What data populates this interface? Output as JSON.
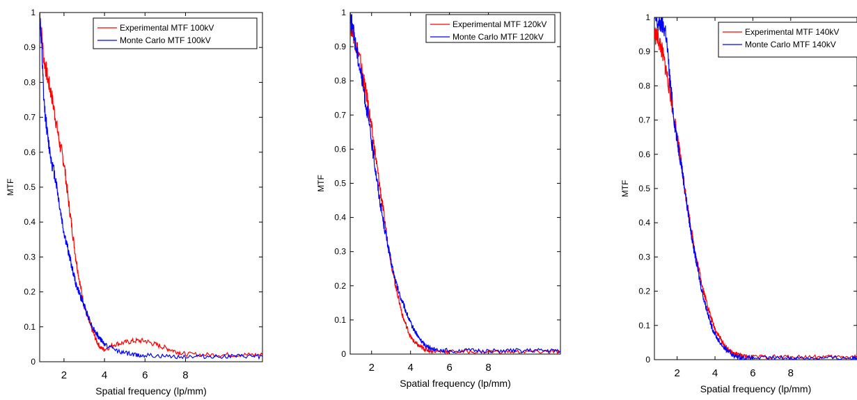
{
  "chart_data": [
    {
      "type": "line",
      "xlabel": "Spatial frequency (lp/mm)",
      "ylabel": "MTF",
      "xlim": [
        0.8,
        11.8
      ],
      "ylim": [
        0,
        1
      ],
      "x_ticks": [
        2,
        4,
        6,
        8
      ],
      "y_ticks": [
        0,
        0.1,
        0.2,
        0.3,
        0.4,
        0.5,
        0.6,
        0.7,
        0.8,
        0.9,
        1
      ],
      "y_tick_labels": [
        "0",
        "0.1",
        "0.2",
        "0.3",
        "0.4",
        "0.5",
        "0.6",
        "0.7",
        "0.8",
        "0.9",
        "1"
      ],
      "legend_position": "top-right",
      "grid": false,
      "series": [
        {
          "name": "Experimental MTF  100kV",
          "color": "#ff0000",
          "x": [
            0.8,
            1.0,
            1.2,
            1.4,
            1.6,
            1.8,
            2.0,
            2.2,
            2.4,
            2.6,
            2.8,
            3.0,
            3.2,
            3.4,
            3.6,
            3.8,
            4.0,
            4.5,
            5.0,
            5.5,
            6.0,
            6.5,
            7.0,
            7.5,
            8.0,
            9.0,
            10.0,
            11.0,
            11.8
          ],
          "y": [
            1.0,
            0.87,
            0.81,
            0.76,
            0.69,
            0.62,
            0.57,
            0.47,
            0.38,
            0.29,
            0.22,
            0.16,
            0.12,
            0.09,
            0.06,
            0.04,
            0.035,
            0.05,
            0.055,
            0.06,
            0.06,
            0.05,
            0.04,
            0.03,
            0.022,
            0.02,
            0.02,
            0.02,
            0.02
          ]
        },
        {
          "name": "Monte Carlo MTF  100kV",
          "color": "#0000ff",
          "x": [
            0.8,
            0.9,
            1.0,
            1.2,
            1.4,
            1.6,
            1.8,
            2.0,
            2.2,
            2.4,
            2.6,
            2.8,
            3.0,
            3.2,
            3.4,
            3.6,
            3.8,
            4.0,
            4.5,
            5.0,
            5.5,
            6.0,
            7.0,
            8.0,
            9.0,
            10.0,
            11.0,
            11.8
          ],
          "y": [
            1.0,
            0.9,
            0.75,
            0.64,
            0.57,
            0.52,
            0.44,
            0.37,
            0.32,
            0.27,
            0.22,
            0.19,
            0.16,
            0.13,
            0.1,
            0.08,
            0.065,
            0.05,
            0.035,
            0.025,
            0.02,
            0.018,
            0.015,
            0.015,
            0.015,
            0.015,
            0.015,
            0.015
          ]
        }
      ]
    },
    {
      "type": "line",
      "xlabel": "Spatial frequency (lp/mm)",
      "ylabel": "MTF",
      "xlim": [
        0.9,
        11.7
      ],
      "ylim": [
        0,
        1
      ],
      "x_ticks": [
        2,
        4,
        6,
        8
      ],
      "y_ticks": [
        0,
        0.1,
        0.2,
        0.3,
        0.4,
        0.5,
        0.6,
        0.7,
        0.8,
        0.9,
        1
      ],
      "y_tick_labels": [
        "0",
        "0.1",
        "0.2",
        "0.3",
        "0.4",
        "0.5",
        "0.6",
        "0.7",
        "0.8",
        "0.9",
        "1"
      ],
      "legend_position": "top-right",
      "grid": false,
      "series": [
        {
          "name": "Experimental MTF  120kV",
          "color": "#ff0000",
          "x": [
            0.9,
            1.0,
            1.2,
            1.4,
            1.6,
            1.8,
            2.0,
            2.2,
            2.4,
            2.6,
            2.8,
            3.0,
            3.2,
            3.4,
            3.6,
            3.8,
            4.0,
            4.2,
            4.4,
            4.6,
            4.8,
            5.0,
            5.5,
            6.0,
            7.0,
            8.0,
            9.0,
            10.0,
            11.0,
            11.7
          ],
          "y": [
            0.97,
            0.95,
            0.91,
            0.86,
            0.8,
            0.74,
            0.66,
            0.58,
            0.5,
            0.42,
            0.34,
            0.27,
            0.21,
            0.16,
            0.11,
            0.08,
            0.05,
            0.035,
            0.025,
            0.018,
            0.013,
            0.01,
            0.008,
            0.007,
            0.007,
            0.007,
            0.007,
            0.007,
            0.007,
            0.007
          ]
        },
        {
          "name": "Monte Carlo MTF  120kV",
          "color": "#0000ff",
          "x": [
            0.9,
            1.0,
            1.2,
            1.4,
            1.6,
            1.8,
            2.0,
            2.2,
            2.4,
            2.6,
            2.8,
            3.0,
            3.2,
            3.4,
            3.6,
            3.8,
            4.0,
            4.2,
            4.4,
            4.6,
            4.8,
            5.0,
            5.5,
            6.0,
            7.0,
            8.0,
            9.0,
            10.0,
            11.0,
            11.7
          ],
          "y": [
            1.0,
            0.96,
            0.9,
            0.84,
            0.77,
            0.7,
            0.62,
            0.54,
            0.46,
            0.39,
            0.33,
            0.27,
            0.22,
            0.18,
            0.15,
            0.12,
            0.09,
            0.07,
            0.05,
            0.035,
            0.025,
            0.018,
            0.012,
            0.01,
            0.01,
            0.01,
            0.01,
            0.01,
            0.01,
            0.01
          ]
        }
      ]
    },
    {
      "type": "line",
      "xlabel": "Spatial frequency (lp/mm)",
      "ylabel": "MTF",
      "xlim": [
        0.8,
        11.5
      ],
      "ylim": [
        0,
        1
      ],
      "x_ticks": [
        2,
        4,
        6,
        8
      ],
      "y_ticks": [
        0,
        0.1,
        0.2,
        0.3,
        0.4,
        0.5,
        0.6,
        0.7,
        0.8,
        0.9,
        1
      ],
      "y_tick_labels": [
        "0",
        "0.1",
        "0.2",
        "0.3",
        "0.4",
        "0.5",
        "0.6",
        "0.7",
        "0.8",
        "0.9",
        "1"
      ],
      "legend_position": "top-right",
      "grid": false,
      "series": [
        {
          "name": "Experimental MTF  140kV",
          "color": "#ff0000",
          "x": [
            0.8,
            1.0,
            1.2,
            1.4,
            1.6,
            1.8,
            2.0,
            2.2,
            2.4,
            2.6,
            2.8,
            3.0,
            3.2,
            3.4,
            3.6,
            3.8,
            4.0,
            4.2,
            4.4,
            4.6,
            4.8,
            5.0,
            5.2,
            5.5,
            6.0,
            7.0,
            8.0,
            9.0,
            10.0,
            11.0,
            11.5
          ],
          "y": [
            0.95,
            0.94,
            0.9,
            0.85,
            0.79,
            0.72,
            0.65,
            0.58,
            0.5,
            0.43,
            0.36,
            0.3,
            0.25,
            0.2,
            0.16,
            0.12,
            0.09,
            0.07,
            0.05,
            0.035,
            0.025,
            0.018,
            0.014,
            0.01,
            0.008,
            0.008,
            0.008,
            0.008,
            0.008,
            0.008,
            0.008
          ]
        },
        {
          "name": "Monte Carlo MTF  140kV",
          "color": "#0000ff",
          "x": [
            0.8,
            1.0,
            1.2,
            1.4,
            1.6,
            1.8,
            2.0,
            2.2,
            2.4,
            2.6,
            2.8,
            3.0,
            3.2,
            3.4,
            3.6,
            3.8,
            4.0,
            4.2,
            4.4,
            4.6,
            4.8,
            5.0,
            5.2,
            5.5,
            6.0,
            7.0,
            8.0,
            9.0,
            10.0,
            11.0,
            11.5
          ],
          "y": [
            1.0,
            0.98,
            0.98,
            0.96,
            0.83,
            0.72,
            0.64,
            0.58,
            0.5,
            0.42,
            0.35,
            0.29,
            0.23,
            0.18,
            0.14,
            0.1,
            0.075,
            0.055,
            0.04,
            0.028,
            0.02,
            0.012,
            0.008,
            0.006,
            0.005,
            0.005,
            0.005,
            0.005,
            0.005,
            0.005,
            0.005
          ]
        }
      ]
    }
  ]
}
